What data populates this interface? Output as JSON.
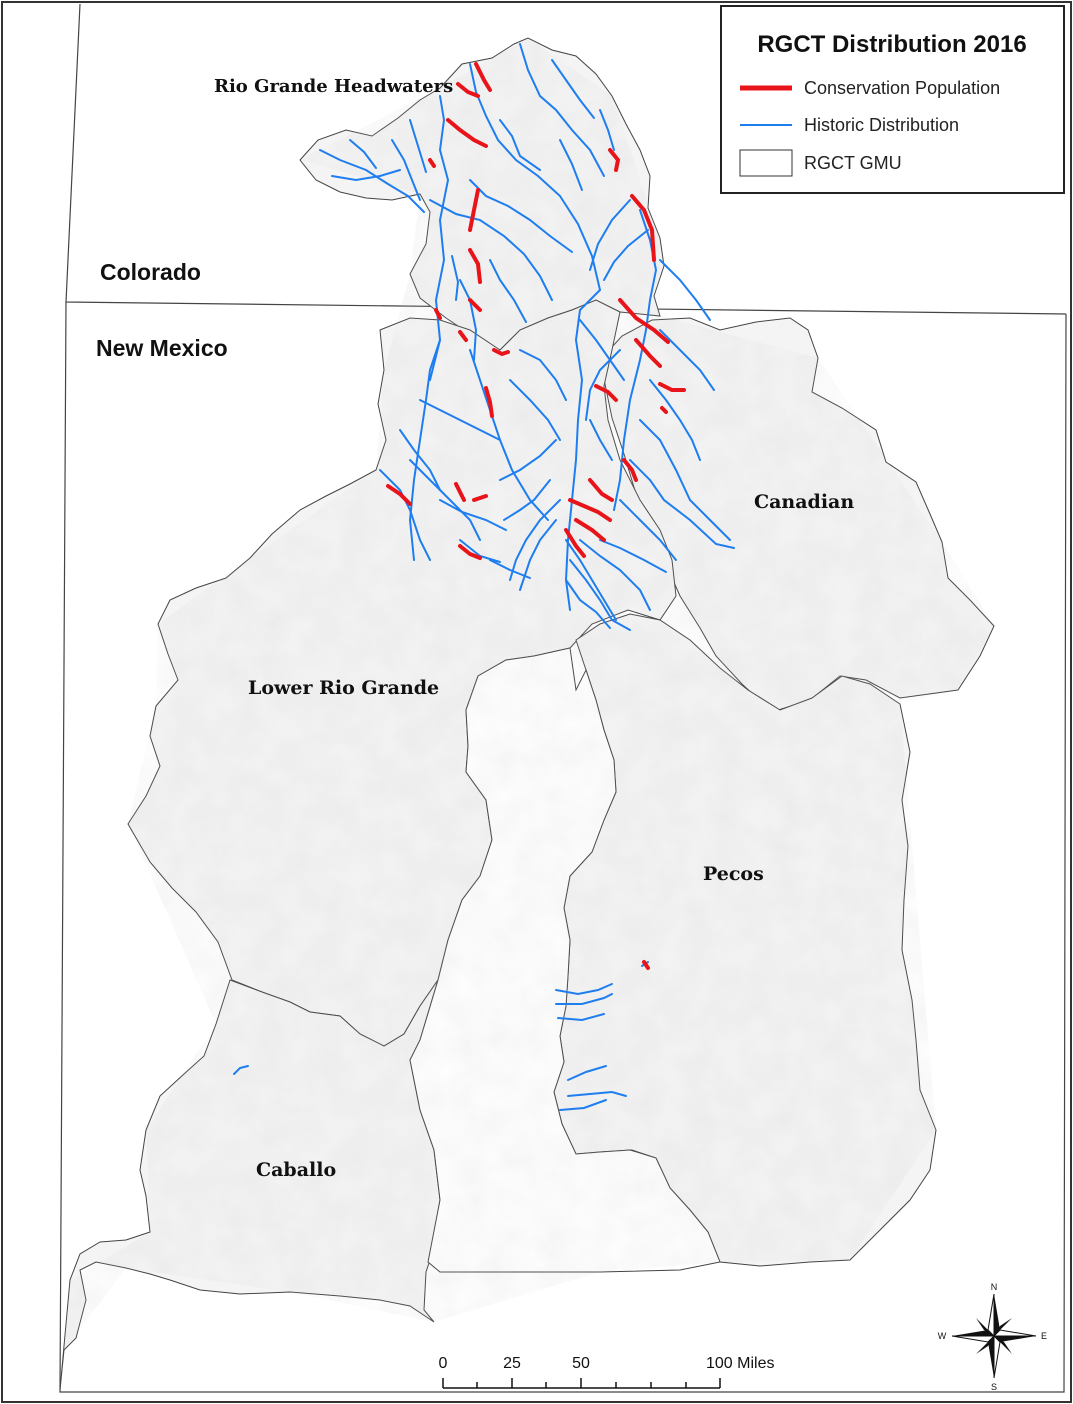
{
  "legend": {
    "title": "RGCT Distribution 2016",
    "items": [
      {
        "label": "Conservation Population",
        "color": "#e8141a",
        "symbol": "thick-line"
      },
      {
        "label": "Historic Distribution",
        "color": "#1e7ef0",
        "symbol": "thin-line"
      },
      {
        "label": "RGCT GMU",
        "color": "#ffffff",
        "symbol": "box"
      }
    ]
  },
  "states": {
    "colorado": "Colorado",
    "new_mexico": "New Mexico"
  },
  "gmus": {
    "headwaters": "Rio Grande Headwaters",
    "canadian": "Canadian",
    "lower_rio_grande": "Lower Rio Grande",
    "pecos": "Pecos",
    "caballo": "Caballo"
  },
  "scale_bar": {
    "ticks": [
      "0",
      "25",
      "50",
      "100 Miles"
    ]
  },
  "north_arrow": {
    "n": "N",
    "s": "S",
    "e": "E",
    "w": "W"
  },
  "colors": {
    "conservation": "#e8141a",
    "historic": "#1e7ef0",
    "gmu_fill": "#f4f4f4",
    "border": "#333333"
  }
}
